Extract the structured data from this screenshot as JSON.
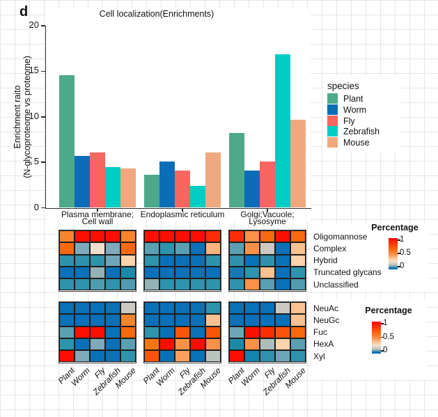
{
  "figure": {
    "panel_label": "d"
  },
  "chart_data": [
    {
      "type": "bar",
      "title": "Cell localization(Enrichments)",
      "ylabel_lines": [
        "Enrichment raito",
        "(N-glycoproteome vs proteome)"
      ],
      "y_ticks": [
        0,
        5,
        10,
        15,
        20
      ],
      "ylim": [
        0,
        20
      ],
      "legend_title": "species",
      "legend_position": "right",
      "grid": false,
      "groups": [
        {
          "label_lines": [
            "Plasma membrane;",
            "Cell wall"
          ]
        },
        {
          "label_lines": [
            "Endoplasmic reticulum"
          ]
        },
        {
          "label_lines": [
            "Golgi;Vacuole;",
            "Lysosyme"
          ]
        }
      ],
      "series": [
        {
          "name": "Plant",
          "color": "#4EA98B",
          "values": [
            14.6,
            3.6,
            8.2
          ]
        },
        {
          "name": "Worm",
          "color": "#0B6DB7",
          "values": [
            5.7,
            5.1,
            4.1
          ]
        },
        {
          "name": "Fly",
          "color": "#F9655F",
          "values": [
            6.1,
            4.1,
            5.1
          ]
        },
        {
          "name": "Zebrafish",
          "color": "#00CDC3",
          "values": [
            4.5,
            2.4,
            16.9
          ]
        },
        {
          "name": "Mouse",
          "color": "#F0A97E",
          "values": [
            4.3,
            6.1,
            9.7
          ]
        }
      ]
    },
    {
      "type": "heatmap",
      "name": "glycan-type-percentage",
      "rows": [
        "Oligomannose",
        "Complex",
        "Hybrid",
        "Truncated glycans",
        "Unclassified"
      ],
      "columns": [
        "Plant",
        "Worm",
        "Fly",
        "Zebrafish",
        "Mouse"
      ],
      "panels": [
        "Plasma membrane; Cell wall",
        "Endoplasmic reticulum",
        "Golgi;Vacuole; Lysosyme"
      ],
      "values": [
        [
          [
            0.5,
            0.92,
            0.92,
            0.92,
            0.5
          ],
          [
            0.6,
            0.16,
            0.28,
            0.16,
            0.6
          ],
          [
            0.06,
            0.06,
            0.06,
            0.14,
            0.32
          ],
          [
            0.0,
            0.0,
            0.18,
            0.0,
            0.04
          ],
          [
            0.06,
            0.06,
            0.1,
            0.06,
            0.1
          ]
        ],
        [
          [
            0.92,
            0.92,
            0.92,
            0.92,
            0.8
          ],
          [
            0.12,
            0.06,
            0.12,
            0.0,
            0.38
          ],
          [
            0.06,
            0.0,
            0.0,
            0.0,
            0.06
          ],
          [
            0.0,
            0.0,
            0.0,
            0.0,
            0.0
          ],
          [
            0.18,
            0.06,
            0.06,
            0.06,
            0.06
          ]
        ],
        [
          [
            0.8,
            0.46,
            0.6,
            0.92,
            0.6
          ],
          [
            0.12,
            0.46,
            0.25,
            0.0,
            0.35
          ],
          [
            0.06,
            0.0,
            0.06,
            0.0,
            0.32
          ],
          [
            0.02,
            0.06,
            0.35,
            0.0,
            0.06
          ],
          [
            0.06,
            0.46,
            0.12,
            0.0,
            0.1
          ]
        ]
      ],
      "color_scale": {
        "legend_title": "Percentage",
        "legend_ticks": [
          "1",
          "0.5",
          "0"
        ],
        "range": [
          0,
          1
        ],
        "stops": [
          {
            "value": 0.0,
            "color": "#0A70B7"
          },
          {
            "value": 0.02,
            "color": "#1779B4"
          },
          {
            "value": 0.03,
            "color": "#1583B0"
          },
          {
            "value": 0.04,
            "color": "#1B8AA8"
          },
          {
            "value": 0.06,
            "color": "#2E93AC"
          },
          {
            "value": 0.1,
            "color": "#4F9CB0"
          },
          {
            "value": 0.12,
            "color": "#5B9FB2"
          },
          {
            "value": 0.14,
            "color": "#6FA5B8"
          },
          {
            "value": 0.16,
            "color": "#7FAABB"
          },
          {
            "value": 0.18,
            "color": "#92B2B6"
          },
          {
            "value": 0.2,
            "color": "#ADBDBC"
          },
          {
            "value": 0.22,
            "color": "#B9C4BF"
          },
          {
            "value": 0.25,
            "color": "#CCC9C2"
          },
          {
            "value": 0.28,
            "color": "#F0DFCE"
          },
          {
            "value": 0.32,
            "color": "#FCD3AC"
          },
          {
            "value": 0.35,
            "color": "#FBC291"
          },
          {
            "value": 0.38,
            "color": "#FBB27D"
          },
          {
            "value": 0.42,
            "color": "#FAA160"
          },
          {
            "value": 0.46,
            "color": "#FA9148"
          },
          {
            "value": 0.5,
            "color": "#F8842E"
          },
          {
            "value": 0.55,
            "color": "#F87514"
          },
          {
            "value": 0.6,
            "color": "#F8690F"
          },
          {
            "value": 0.65,
            "color": "#F8550A"
          },
          {
            "value": 0.8,
            "color": "#FA2D05"
          },
          {
            "value": 0.92,
            "color": "#FA0F00"
          },
          {
            "value": 1.0,
            "color": "#FF0000"
          }
        ]
      }
    },
    {
      "type": "heatmap",
      "name": "monosaccharide-percentage",
      "rows": [
        "NeuAc",
        "NeuGc",
        "Fuc",
        "HexA",
        "Xyl"
      ],
      "columns": [
        "Plant",
        "Worm",
        "Fly",
        "Zebrafish",
        "Mouse"
      ],
      "panels": [
        "Plasma membrane; Cell wall",
        "Endoplasmic reticulum",
        "Golgi;Vacuole; Lysosyme"
      ],
      "values": [
        [
          [
            0.0,
            0.0,
            0.0,
            0.0,
            0.25
          ],
          [
            0.0,
            0.0,
            0.0,
            0.0,
            0.5
          ],
          [
            0.12,
            0.92,
            0.92,
            0.0,
            0.6
          ],
          [
            0.06,
            0.0,
            0.16,
            0.0,
            0.12
          ],
          [
            0.92,
            0.16,
            0.0,
            0.0,
            0.06
          ]
        ],
        [
          [
            0.0,
            0.0,
            0.0,
            0.0,
            0.06
          ],
          [
            0.0,
            0.0,
            0.0,
            0.0,
            0.35
          ],
          [
            0.06,
            0.0,
            0.65,
            0.0,
            0.65
          ],
          [
            0.55,
            0.92,
            0.46,
            0.92,
            0.46
          ],
          [
            0.65,
            0.0,
            0.42,
            0.0,
            0.22
          ]
        ],
        [
          [
            0.0,
            0.0,
            0.0,
            0.25,
            0.35
          ],
          [
            0.0,
            0.0,
            0.0,
            0.0,
            0.35
          ],
          [
            0.14,
            0.92,
            0.8,
            0.65,
            0.6
          ],
          [
            0.04,
            0.46,
            0.2,
            0.32,
            0.12
          ],
          [
            0.92,
            0.03,
            0.06,
            0.14,
            0.06
          ]
        ]
      ],
      "color_scale": {
        "legend_title": "Percentage",
        "legend_ticks": [
          "1",
          "0.5",
          "0"
        ],
        "range": [
          0,
          1
        ],
        "stops": [
          {
            "value": 0.0,
            "color": "#0A70B7"
          },
          {
            "value": 0.02,
            "color": "#1779B4"
          },
          {
            "value": 0.03,
            "color": "#1583B0"
          },
          {
            "value": 0.04,
            "color": "#1B8AA8"
          },
          {
            "value": 0.06,
            "color": "#2E93AC"
          },
          {
            "value": 0.1,
            "color": "#4F9CB0"
          },
          {
            "value": 0.12,
            "color": "#5B9FB2"
          },
          {
            "value": 0.14,
            "color": "#6FA5B8"
          },
          {
            "value": 0.16,
            "color": "#7FAABB"
          },
          {
            "value": 0.18,
            "color": "#92B2B6"
          },
          {
            "value": 0.2,
            "color": "#ADBDBC"
          },
          {
            "value": 0.22,
            "color": "#B9C4BF"
          },
          {
            "value": 0.25,
            "color": "#CCC9C2"
          },
          {
            "value": 0.28,
            "color": "#F0DFCE"
          },
          {
            "value": 0.32,
            "color": "#FCD3AC"
          },
          {
            "value": 0.35,
            "color": "#FBC291"
          },
          {
            "value": 0.38,
            "color": "#FBB27D"
          },
          {
            "value": 0.42,
            "color": "#FAA160"
          },
          {
            "value": 0.46,
            "color": "#FA9148"
          },
          {
            "value": 0.5,
            "color": "#F8842E"
          },
          {
            "value": 0.55,
            "color": "#F87514"
          },
          {
            "value": 0.6,
            "color": "#F8690F"
          },
          {
            "value": 0.65,
            "color": "#F8550A"
          },
          {
            "value": 0.8,
            "color": "#FA2D05"
          },
          {
            "value": 0.92,
            "color": "#FA0F00"
          },
          {
            "value": 1.0,
            "color": "#FF0000"
          }
        ]
      }
    }
  ]
}
